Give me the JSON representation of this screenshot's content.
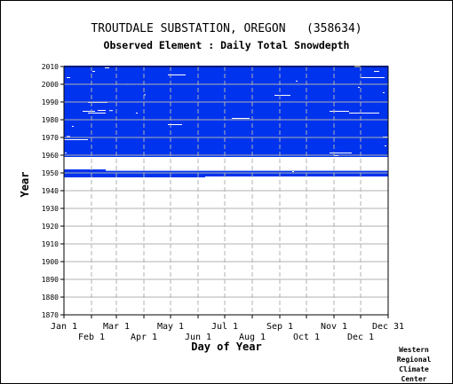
{
  "header": {
    "station_title": "TROUTDALE SUBSTATION, OREGON   (358634)",
    "element_title": "Observed Element : Daily Total Snowdepth"
  },
  "credit": {
    "lines": [
      "Western",
      "Regional",
      "Climate",
      "Center"
    ]
  },
  "colors": {
    "data": "#0033ee",
    "grid": "#b0b0b0",
    "axis": "#000000",
    "background": "#ffffff"
  },
  "chart_data": {
    "type": "heatmap",
    "xlabel": "Day of Year",
    "ylabel": "Year",
    "xlim": [
      1,
      366
    ],
    "ylim": [
      1870,
      2010
    ],
    "y_ticks": [
      1870,
      1880,
      1890,
      1900,
      1910,
      1920,
      1930,
      1940,
      1950,
      1960,
      1970,
      1980,
      1990,
      2000,
      2010
    ],
    "x_ticks_upper": [
      {
        "label": "Jan 1",
        "day": 1
      },
      {
        "label": "Mar 1",
        "day": 60
      },
      {
        "label": "May 1",
        "day": 121
      },
      {
        "label": "Jul 1",
        "day": 182
      },
      {
        "label": "Sep 1",
        "day": 244
      },
      {
        "label": "Nov 1",
        "day": 305
      },
      {
        "label": "Dec 31",
        "day": 366
      }
    ],
    "x_ticks_lower": [
      {
        "label": "Feb 1",
        "day": 32
      },
      {
        "label": "Apr 1",
        "day": 91
      },
      {
        "label": "Jun 1",
        "day": 152
      },
      {
        "label": "Aug 1",
        "day": 213
      },
      {
        "label": "Oct 1",
        "day": 274
      },
      {
        "label": "Dec 1",
        "day": 335
      }
    ],
    "coverage_blocks": [
      {
        "start_year": 1947.5,
        "end_year": 1952.5,
        "start_day": 1,
        "end_day": 366
      },
      {
        "start_year": 1952.5,
        "end_year": 1959.0,
        "start_day": 1,
        "end_day": 366
      },
      {
        "start_year": 1959.0,
        "end_year": 2010.5,
        "start_day": 1,
        "end_day": 366
      }
    ],
    "missing_gaps": [
      {
        "year_from": 1952.5,
        "year_to": 1959.0,
        "day_from": 1,
        "day_to": 366
      },
      {
        "year_from": 1952.0,
        "year_to": 1952.6,
        "day_from": 1,
        "day_to": 48
      },
      {
        "year_from": 1951.2,
        "year_to": 1952.5,
        "day_from": 48,
        "day_to": 90
      },
      {
        "year_from": 1951.2,
        "year_to": 1952.5,
        "day_from": 90,
        "day_to": 366
      },
      {
        "year_from": 1947.5,
        "year_to": 1948.0,
        "day_from": 160,
        "day_to": 366
      },
      {
        "year_from": 1968.5,
        "year_to": 1969.0,
        "day_from": 1,
        "day_to": 28
      },
      {
        "year_from": 1970.3,
        "year_to": 1970.8,
        "day_from": 4,
        "day_to": 8
      },
      {
        "year_from": 1983.5,
        "year_to": 1984.0,
        "day_from": 28,
        "day_to": 48
      },
      {
        "year_from": 1984.5,
        "year_to": 1985.0,
        "day_from": 22,
        "day_to": 36
      },
      {
        "year_from": 1985.0,
        "year_to": 1985.5,
        "day_from": 39,
        "day_to": 48
      },
      {
        "year_from": 1985.0,
        "year_to": 1985.4,
        "day_from": 52,
        "day_to": 56
      },
      {
        "year_from": 1989.5,
        "year_to": 1990.0,
        "day_from": 28,
        "day_to": 50
      },
      {
        "year_from": 1977.0,
        "year_to": 1977.5,
        "day_from": 118,
        "day_to": 134
      },
      {
        "year_from": 1980.5,
        "year_to": 1981.0,
        "day_from": 190,
        "day_to": 210
      },
      {
        "year_from": 1993.5,
        "year_to": 1994.0,
        "day_from": 238,
        "day_to": 256
      },
      {
        "year_from": 2005.0,
        "year_to": 2005.5,
        "day_from": 118,
        "day_to": 138
      },
      {
        "year_from": 2003.5,
        "year_to": 2004.0,
        "day_from": 4,
        "day_to": 8
      },
      {
        "year_from": 2007.0,
        "year_to": 2007.5,
        "day_from": 33,
        "day_to": 36
      },
      {
        "year_from": 2009.0,
        "year_to": 2009.5,
        "day_from": 47,
        "day_to": 52
      },
      {
        "year_from": 1999.7,
        "year_to": 2000.2,
        "day_from": 72,
        "day_to": 74
      },
      {
        "year_from": 1993.8,
        "year_to": 1994.3,
        "day_from": 91,
        "day_to": 93
      },
      {
        "year_from": 1983.5,
        "year_to": 1984.0,
        "day_from": 82,
        "day_to": 84
      },
      {
        "year_from": 1984.5,
        "year_to": 1985.0,
        "day_from": 300,
        "day_to": 322
      },
      {
        "year_from": 1983.5,
        "year_to": 1984.0,
        "day_from": 322,
        "day_to": 356
      },
      {
        "year_from": 1961.0,
        "year_to": 1961.5,
        "day_from": 300,
        "day_to": 325
      },
      {
        "year_from": 1959.5,
        "year_to": 1960.0,
        "day_from": 305,
        "day_to": 310
      },
      {
        "year_from": 2003.5,
        "year_to": 2004.0,
        "day_from": 335,
        "day_to": 362
      },
      {
        "year_from": 2009.5,
        "year_to": 2010.5,
        "day_from": 328,
        "day_to": 335
      },
      {
        "year_from": 2007.0,
        "year_to": 2007.5,
        "day_from": 350,
        "day_to": 356
      },
      {
        "year_from": 1998.0,
        "year_to": 1998.5,
        "day_from": 332,
        "day_to": 334
      },
      {
        "year_from": 1995.0,
        "year_to": 1995.5,
        "day_from": 360,
        "day_to": 362
      },
      {
        "year_from": 1970.0,
        "year_to": 1970.5,
        "day_from": 360,
        "day_to": 366
      },
      {
        "year_from": 1965.0,
        "year_to": 1965.5,
        "day_from": 362,
        "day_to": 364
      },
      {
        "year_from": 1961.0,
        "year_to": 1961.5,
        "day_from": 2,
        "day_to": 4
      },
      {
        "year_from": 1950.5,
        "year_to": 1951.0,
        "day_from": 258,
        "day_to": 260
      },
      {
        "year_from": 2001.5,
        "year_to": 2002.0,
        "day_from": 262,
        "day_to": 264
      },
      {
        "year_from": 1976.0,
        "year_to": 1976.5,
        "day_from": 10,
        "day_to": 12
      }
    ]
  }
}
